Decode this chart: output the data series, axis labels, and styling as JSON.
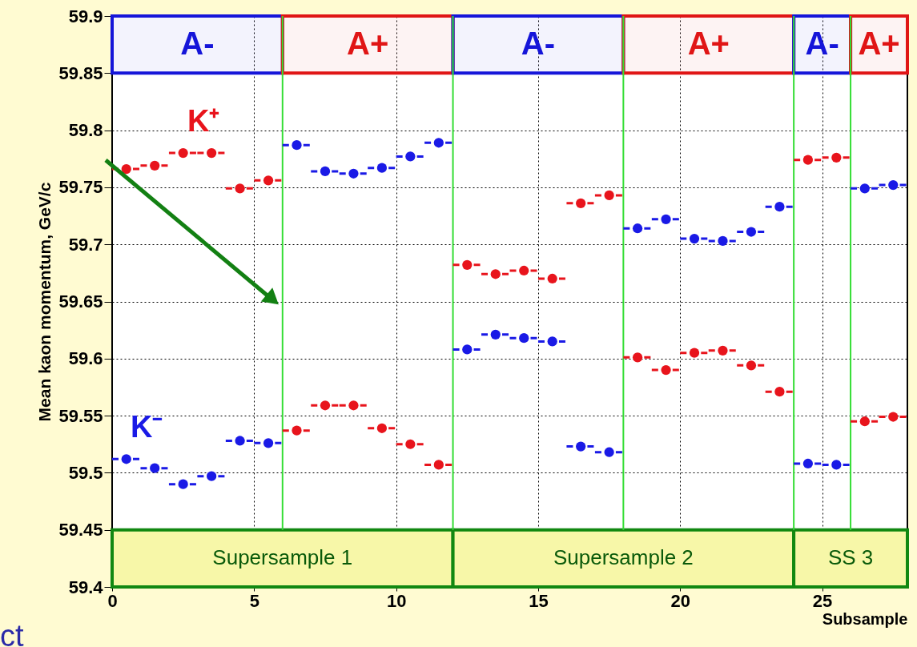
{
  "chart_data": {
    "type": "scatter",
    "xlabel": "Subsample",
    "ylabel": "Mean kaon momentum, GeV/c",
    "xlim": [
      0,
      28
    ],
    "xticks": [
      0,
      5,
      10,
      15,
      20,
      25
    ],
    "ylim": [
      59.4,
      59.9
    ],
    "yticks": [
      59.4,
      59.45,
      59.5,
      59.55,
      59.6,
      59.65,
      59.7,
      59.75,
      59.8,
      59.85,
      59.9
    ],
    "grid": true,
    "marker": "circle",
    "x": [
      0.5,
      1.5,
      2.5,
      3.5,
      4.5,
      5.5,
      6.5,
      7.5,
      8.5,
      9.5,
      10.5,
      11.5,
      12.5,
      13.5,
      14.5,
      15.5,
      16.5,
      17.5,
      18.5,
      19.5,
      20.5,
      21.5,
      22.5,
      23.5,
      24.5,
      25.5,
      26.5,
      27.5
    ],
    "series": [
      {
        "name": "K⁺",
        "color": "#e8141c",
        "values": [
          59.766,
          59.769,
          59.78,
          59.78,
          59.749,
          59.756,
          59.537,
          59.559,
          59.559,
          59.539,
          59.525,
          59.507,
          59.682,
          59.674,
          59.677,
          59.67,
          59.736,
          59.743,
          59.601,
          59.59,
          59.605,
          59.607,
          59.594,
          59.571,
          59.774,
          59.776,
          59.545,
          59.549
        ],
        "xerrors": [
          0.5,
          0.5,
          0.5,
          0.5,
          0.5,
          0.5,
          0.5,
          0.5,
          0.5,
          0.5,
          0.5,
          0.5,
          0.5,
          0.5,
          0.5,
          0.5,
          0.5,
          0.5,
          0.5,
          0.5,
          0.5,
          0.5,
          0.5,
          0.5,
          0.5,
          0.5,
          0.5,
          0.5
        ]
      },
      {
        "name": "K⁻",
        "color": "#1a1ae6",
        "values": [
          59.512,
          59.504,
          59.49,
          59.497,
          59.528,
          59.526,
          59.787,
          59.764,
          59.762,
          59.767,
          59.777,
          59.789,
          59.608,
          59.621,
          59.618,
          59.615,
          59.523,
          59.518,
          59.714,
          59.722,
          59.705,
          59.703,
          59.711,
          59.733,
          59.508,
          59.507,
          59.749,
          59.752
        ],
        "xerrors": [
          0.5,
          0.5,
          0.5,
          0.5,
          0.5,
          0.5,
          0.5,
          0.5,
          0.5,
          0.5,
          0.5,
          0.5,
          0.5,
          0.5,
          0.5,
          0.5,
          0.5,
          0.5,
          0.5,
          0.5,
          0.5,
          0.5,
          0.5,
          0.5,
          0.5,
          0.5,
          0.5,
          0.5
        ]
      }
    ],
    "ref_lines": [
      {
        "axis": "x",
        "value": 6,
        "color": "#33dd33"
      },
      {
        "axis": "x",
        "value": 12,
        "color": "#33dd33"
      },
      {
        "axis": "x",
        "value": 18,
        "color": "#33dd33"
      },
      {
        "axis": "x",
        "value": 24,
        "color": "#33dd33"
      },
      {
        "axis": "x",
        "value": 26,
        "color": "#33dd33"
      }
    ],
    "bands": [
      {
        "axis": "x",
        "from": 0,
        "to": 6,
        "label": "A-",
        "color": "#1515d9"
      },
      {
        "axis": "x",
        "from": 6,
        "to": 12,
        "label": "A+",
        "color": "#e01515"
      },
      {
        "axis": "x",
        "from": 12,
        "to": 18,
        "label": "A-",
        "color": "#1515d9"
      },
      {
        "axis": "x",
        "from": 18,
        "to": 24,
        "label": "A+",
        "color": "#e01515"
      },
      {
        "axis": "x",
        "from": 24,
        "to": 26,
        "label": "A-",
        "color": "#1515d9"
      },
      {
        "axis": "x",
        "from": 26,
        "to": 28,
        "label": "A+",
        "color": "#e01515"
      },
      {
        "axis": "x",
        "from": 0,
        "to": 12,
        "label": "Supersample 1",
        "color": "#f7f7a8"
      },
      {
        "axis": "x",
        "from": 12,
        "to": 24,
        "label": "Supersample 2",
        "color": "#f7f7a8"
      },
      {
        "axis": "x",
        "from": 24,
        "to": 28,
        "label": "SS 3",
        "color": "#f7f7a8"
      }
    ],
    "annotations": [
      "ct"
    ]
  }
}
